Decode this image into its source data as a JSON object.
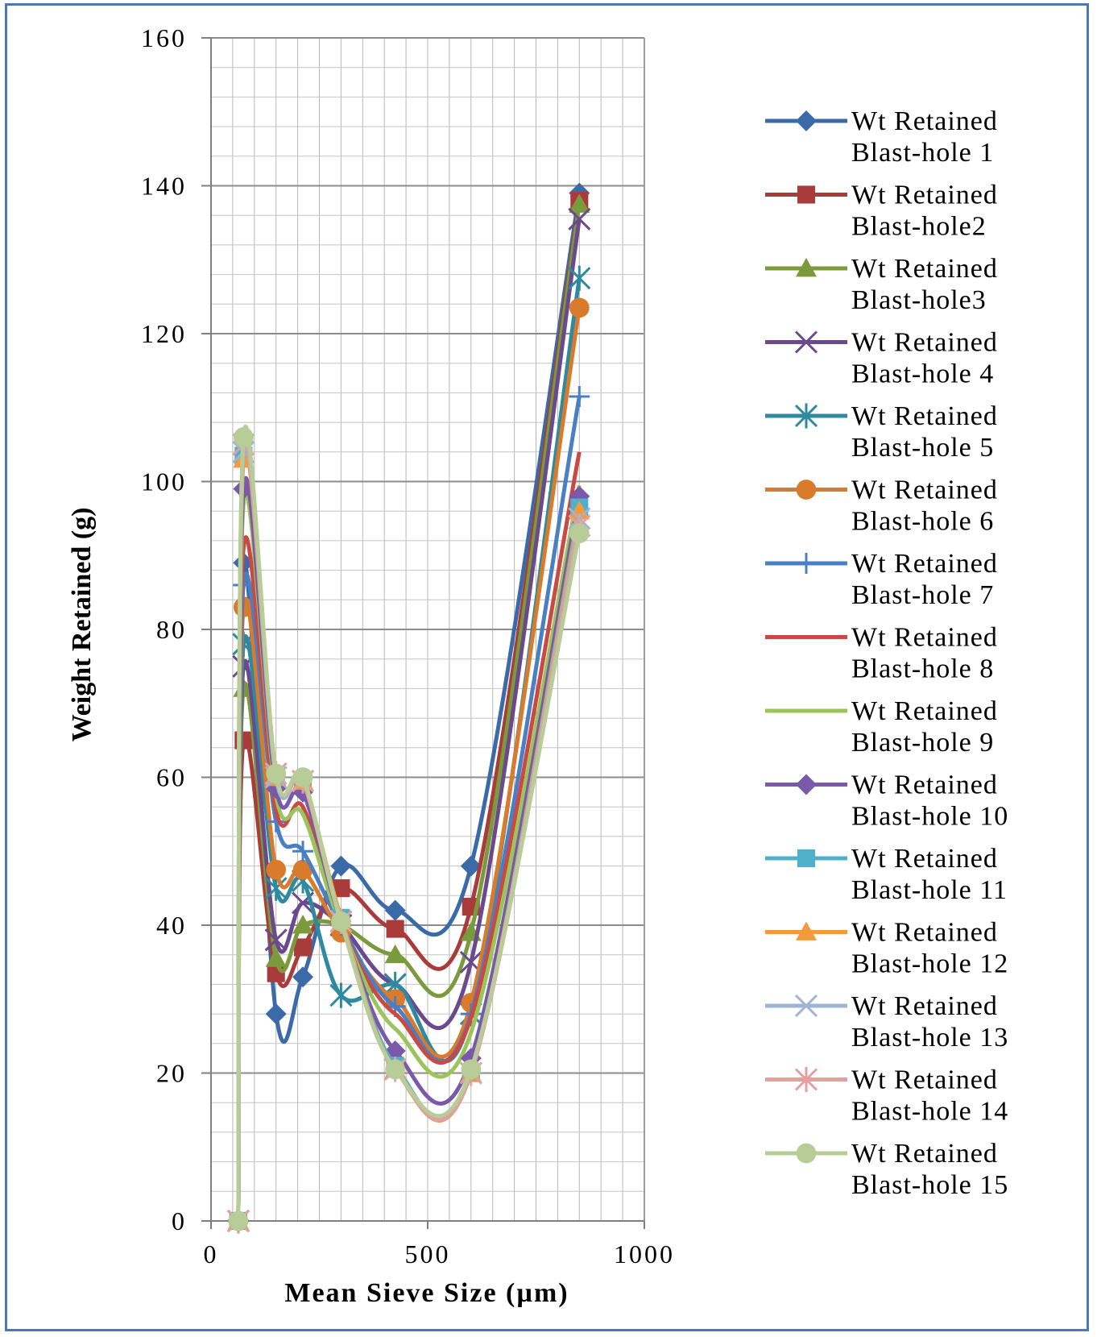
{
  "chart_data": {
    "type": "line",
    "xlabel": "Mean Sieve Size (µm)",
    "ylabel": "Weight Retained (g)",
    "xlim": [
      0,
      1000
    ],
    "ylim": [
      0,
      160
    ],
    "xticks": [
      0,
      500,
      1000
    ],
    "yticks": [
      0,
      20,
      40,
      60,
      80,
      100,
      120,
      140,
      160
    ],
    "grid": true,
    "legend_position": "right",
    "x": [
      63,
      75,
      150,
      212,
      300,
      425,
      600,
      850
    ],
    "series": [
      {
        "name": "Wt Retained Blast-hole 1",
        "color": "#3b6aa8",
        "marker": "diamond",
        "values": [
          0,
          89,
          28,
          33,
          48,
          42,
          48,
          139
        ]
      },
      {
        "name": "Wt Retained Blast-hole2",
        "color": "#a93c3a",
        "marker": "square",
        "values": [
          0,
          65,
          33.5,
          37,
          45,
          39.5,
          42.5,
          138
        ]
      },
      {
        "name": "Wt Retained Blast-hole3",
        "color": "#7a9a3c",
        "marker": "triangle",
        "values": [
          0,
          72,
          35.5,
          40,
          40,
          36,
          39,
          137.5
        ]
      },
      {
        "name": "Wt Retained Blast-hole 4",
        "color": "#6a4a8c",
        "marker": "x",
        "values": [
          0,
          75,
          38,
          43,
          40,
          32,
          35,
          135.5
        ]
      },
      {
        "name": "Wt Retained Blast-hole 5",
        "color": "#2f8aa0",
        "marker": "star",
        "values": [
          0,
          78,
          45,
          46,
          30.5,
          32,
          28,
          127.5
        ]
      },
      {
        "name": "Wt Retained Blast-hole 6",
        "color": "#d97b2a",
        "marker": "circle",
        "values": [
          0,
          83,
          47.5,
          47.5,
          39,
          30,
          29.5,
          123.5
        ]
      },
      {
        "name": "Wt Retained Blast-hole 7",
        "color": "#4a7fc4",
        "marker": "plus",
        "values": [
          0,
          86,
          54,
          50,
          40,
          29,
          28,
          111.5
        ]
      },
      {
        "name": "Wt Retained Blast-hole 8",
        "color": "#c94a44",
        "marker": "none",
        "values": [
          0,
          91,
          55.5,
          56,
          40,
          28,
          27.5,
          104
        ]
      },
      {
        "name": "Wt Retained Blast-hole 9",
        "color": "#9bc45a",
        "marker": "none",
        "values": [
          0,
          97,
          57.5,
          55,
          40,
          26,
          25.5,
          99.5
        ]
      },
      {
        "name": "Wt Retained Blast-hole 10",
        "color": "#7a5aa8",
        "marker": "diamond",
        "values": [
          0,
          99,
          58.5,
          58,
          40.5,
          23,
          22,
          98
        ]
      },
      {
        "name": "Wt Retained Blast-hole 11",
        "color": "#4fb0cc",
        "marker": "square",
        "values": [
          0,
          103.5,
          60,
          59.5,
          41,
          21,
          20,
          96.5
        ]
      },
      {
        "name": "Wt Retained Blast-hole 12",
        "color": "#f39a3c",
        "marker": "triangle",
        "values": [
          0,
          103,
          60,
          59.5,
          41,
          20.5,
          20,
          96
        ]
      },
      {
        "name": "Wt Retained Blast-hole 13",
        "color": "#9fb4d4",
        "marker": "x",
        "values": [
          0,
          104,
          60,
          59.5,
          40.5,
          20.5,
          20,
          95
        ]
      },
      {
        "name": "Wt Retained Blast-hole 14",
        "color": "#e3a09c",
        "marker": "star",
        "values": [
          0,
          105,
          60.5,
          59.5,
          40.5,
          20.5,
          20,
          94
        ]
      },
      {
        "name": "Wt Retained Blast-hole 15",
        "color": "#b8cc98",
        "marker": "circle",
        "values": [
          0,
          106,
          60.5,
          60,
          40.5,
          20.5,
          20.5,
          93
        ]
      }
    ]
  }
}
